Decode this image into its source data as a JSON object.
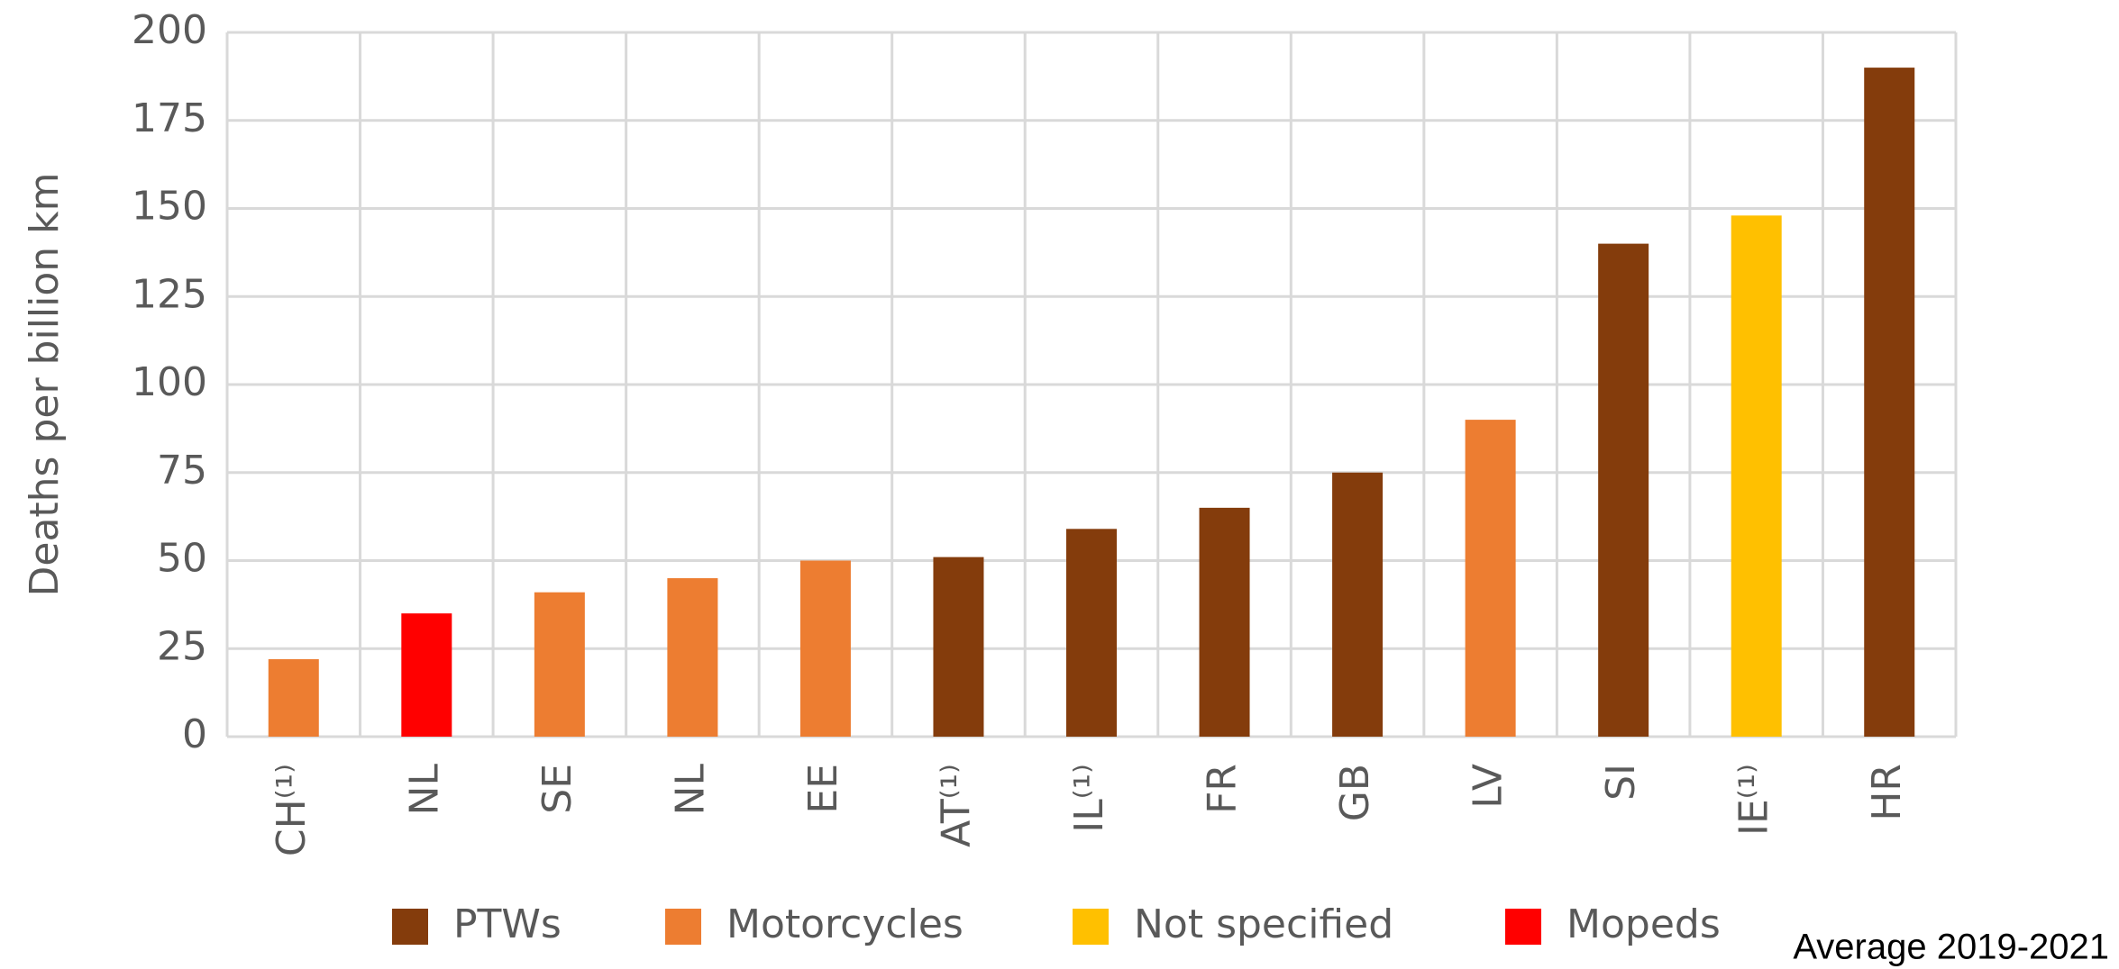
{
  "chart_data": {
    "type": "bar",
    "ylabel": "Deaths per billion km",
    "annotation": "Average 2019-2021",
    "categories": [
      "CH⁽¹⁾",
      "NL",
      "SE",
      "NL",
      "EE",
      "AT⁽¹⁾",
      "IL⁽¹⁾",
      "FR",
      "GB",
      "LV",
      "SI",
      "IE⁽¹⁾",
      "HR"
    ],
    "series": [
      {
        "name": "PTWs",
        "color": "#843c0c",
        "values": [
          null,
          null,
          null,
          null,
          null,
          51,
          59,
          65,
          75,
          null,
          140,
          null,
          190
        ]
      },
      {
        "name": "Motorcycles",
        "color": "#ed7d31",
        "values": [
          22,
          null,
          41,
          45,
          50,
          null,
          null,
          null,
          null,
          90,
          null,
          null,
          null
        ]
      },
      {
        "name": "Not specified",
        "color": "#ffc000",
        "values": [
          null,
          null,
          null,
          null,
          null,
          null,
          null,
          null,
          null,
          null,
          null,
          148,
          null
        ]
      },
      {
        "name": "Mopeds",
        "color": "#ff0000",
        "values": [
          null,
          35,
          null,
          null,
          null,
          null,
          null,
          null,
          null,
          null,
          null,
          null,
          null
        ]
      }
    ],
    "ylim": [
      0,
      200
    ],
    "yticks": [
      0,
      25,
      50,
      75,
      100,
      125,
      150,
      175,
      200
    ],
    "grid": true
  }
}
